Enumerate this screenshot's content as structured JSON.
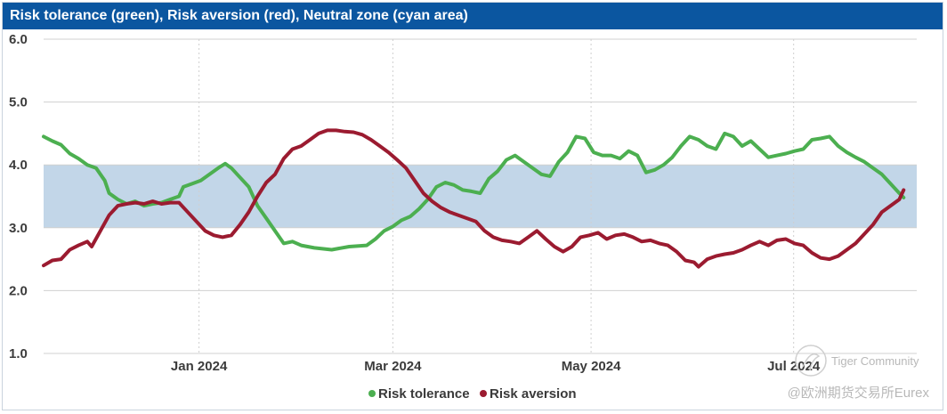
{
  "chart_data": {
    "type": "line",
    "title": "Risk tolerance (green), Risk aversion (red), Neutral zone (cyan area)",
    "ylim": [
      1.0,
      6.0
    ],
    "y_ticks": [
      "1.0",
      "2.0",
      "3.0",
      "4.0",
      "5.0",
      "6.0"
    ],
    "x_tick_labels": [
      {
        "label": "Jan 2024",
        "t": 0.178
      },
      {
        "label": "Mar 2024",
        "t": 0.4
      },
      {
        "label": "May 2024",
        "t": 0.627
      },
      {
        "label": "Jul 2024",
        "t": 0.859
      }
    ],
    "neutral_zone": {
      "low": 3.0,
      "high": 4.0,
      "color": "#c2d6e8"
    },
    "series": [
      {
        "name": "Risk tolerance",
        "color": "#4caf50",
        "points": [
          [
            0.0,
            4.45
          ],
          [
            0.01,
            4.38
          ],
          [
            0.02,
            4.32
          ],
          [
            0.03,
            4.18
          ],
          [
            0.04,
            4.1
          ],
          [
            0.05,
            4.0
          ],
          [
            0.06,
            3.95
          ],
          [
            0.07,
            3.75
          ],
          [
            0.075,
            3.55
          ],
          [
            0.085,
            3.45
          ],
          [
            0.095,
            3.38
          ],
          [
            0.105,
            3.42
          ],
          [
            0.115,
            3.35
          ],
          [
            0.125,
            3.38
          ],
          [
            0.135,
            3.4
          ],
          [
            0.145,
            3.45
          ],
          [
            0.155,
            3.5
          ],
          [
            0.16,
            3.65
          ],
          [
            0.17,
            3.7
          ],
          [
            0.18,
            3.75
          ],
          [
            0.19,
            3.85
          ],
          [
            0.2,
            3.95
          ],
          [
            0.208,
            4.02
          ],
          [
            0.215,
            3.95
          ],
          [
            0.225,
            3.8
          ],
          [
            0.235,
            3.65
          ],
          [
            0.245,
            3.35
          ],
          [
            0.255,
            3.15
          ],
          [
            0.265,
            2.95
          ],
          [
            0.275,
            2.75
          ],
          [
            0.285,
            2.78
          ],
          [
            0.295,
            2.72
          ],
          [
            0.31,
            2.68
          ],
          [
            0.33,
            2.65
          ],
          [
            0.35,
            2.7
          ],
          [
            0.37,
            2.72
          ],
          [
            0.38,
            2.82
          ],
          [
            0.39,
            2.95
          ],
          [
            0.4,
            3.02
          ],
          [
            0.41,
            3.12
          ],
          [
            0.42,
            3.18
          ],
          [
            0.43,
            3.3
          ],
          [
            0.44,
            3.45
          ],
          [
            0.45,
            3.65
          ],
          [
            0.46,
            3.72
          ],
          [
            0.47,
            3.68
          ],
          [
            0.48,
            3.6
          ],
          [
            0.49,
            3.58
          ],
          [
            0.5,
            3.55
          ],
          [
            0.51,
            3.78
          ],
          [
            0.52,
            3.9
          ],
          [
            0.53,
            4.08
          ],
          [
            0.54,
            4.15
          ],
          [
            0.55,
            4.05
          ],
          [
            0.56,
            3.95
          ],
          [
            0.57,
            3.85
          ],
          [
            0.58,
            3.82
          ],
          [
            0.59,
            4.05
          ],
          [
            0.6,
            4.2
          ],
          [
            0.61,
            4.45
          ],
          [
            0.62,
            4.42
          ],
          [
            0.63,
            4.2
          ],
          [
            0.64,
            4.15
          ],
          [
            0.65,
            4.15
          ],
          [
            0.66,
            4.1
          ],
          [
            0.67,
            4.22
          ],
          [
            0.68,
            4.15
          ],
          [
            0.69,
            3.88
          ],
          [
            0.7,
            3.92
          ],
          [
            0.71,
            4.0
          ],
          [
            0.72,
            4.12
          ],
          [
            0.73,
            4.3
          ],
          [
            0.74,
            4.45
          ],
          [
            0.75,
            4.4
          ],
          [
            0.76,
            4.3
          ],
          [
            0.77,
            4.25
          ],
          [
            0.78,
            4.5
          ],
          [
            0.79,
            4.45
          ],
          [
            0.8,
            4.3
          ],
          [
            0.81,
            4.38
          ],
          [
            0.82,
            4.25
          ],
          [
            0.83,
            4.12
          ],
          [
            0.84,
            4.15
          ],
          [
            0.85,
            4.18
          ],
          [
            0.86,
            4.22
          ],
          [
            0.87,
            4.25
          ],
          [
            0.88,
            4.4
          ],
          [
            0.89,
            4.42
          ],
          [
            0.9,
            4.45
          ],
          [
            0.91,
            4.3
          ],
          [
            0.92,
            4.2
          ],
          [
            0.93,
            4.12
          ],
          [
            0.94,
            4.05
          ],
          [
            0.95,
            3.95
          ],
          [
            0.96,
            3.85
          ],
          [
            0.97,
            3.7
          ],
          [
            0.98,
            3.55
          ],
          [
            0.985,
            3.48
          ]
        ]
      },
      {
        "name": "Risk aversion",
        "color": "#9b1b30",
        "points": [
          [
            0.0,
            2.4
          ],
          [
            0.01,
            2.48
          ],
          [
            0.02,
            2.5
          ],
          [
            0.03,
            2.65
          ],
          [
            0.04,
            2.72
          ],
          [
            0.05,
            2.78
          ],
          [
            0.055,
            2.7
          ],
          [
            0.065,
            2.95
          ],
          [
            0.075,
            3.2
          ],
          [
            0.085,
            3.35
          ],
          [
            0.095,
            3.38
          ],
          [
            0.105,
            3.4
          ],
          [
            0.115,
            3.38
          ],
          [
            0.125,
            3.42
          ],
          [
            0.135,
            3.38
          ],
          [
            0.145,
            3.4
          ],
          [
            0.155,
            3.4
          ],
          [
            0.165,
            3.25
          ],
          [
            0.175,
            3.1
          ],
          [
            0.185,
            2.95
          ],
          [
            0.195,
            2.88
          ],
          [
            0.205,
            2.85
          ],
          [
            0.215,
            2.88
          ],
          [
            0.225,
            3.05
          ],
          [
            0.235,
            3.25
          ],
          [
            0.245,
            3.5
          ],
          [
            0.255,
            3.72
          ],
          [
            0.265,
            3.85
          ],
          [
            0.275,
            4.1
          ],
          [
            0.285,
            4.25
          ],
          [
            0.295,
            4.3
          ],
          [
            0.305,
            4.4
          ],
          [
            0.315,
            4.5
          ],
          [
            0.325,
            4.55
          ],
          [
            0.335,
            4.55
          ],
          [
            0.345,
            4.53
          ],
          [
            0.355,
            4.52
          ],
          [
            0.365,
            4.48
          ],
          [
            0.375,
            4.4
          ],
          [
            0.385,
            4.3
          ],
          [
            0.395,
            4.2
          ],
          [
            0.405,
            4.08
          ],
          [
            0.415,
            3.95
          ],
          [
            0.425,
            3.75
          ],
          [
            0.435,
            3.55
          ],
          [
            0.445,
            3.42
          ],
          [
            0.455,
            3.32
          ],
          [
            0.465,
            3.25
          ],
          [
            0.475,
            3.2
          ],
          [
            0.485,
            3.15
          ],
          [
            0.495,
            3.1
          ],
          [
            0.505,
            2.95
          ],
          [
            0.515,
            2.85
          ],
          [
            0.525,
            2.8
          ],
          [
            0.535,
            2.78
          ],
          [
            0.545,
            2.75
          ],
          [
            0.555,
            2.85
          ],
          [
            0.565,
            2.95
          ],
          [
            0.575,
            2.82
          ],
          [
            0.585,
            2.7
          ],
          [
            0.595,
            2.62
          ],
          [
            0.605,
            2.7
          ],
          [
            0.615,
            2.85
          ],
          [
            0.625,
            2.88
          ],
          [
            0.635,
            2.92
          ],
          [
            0.645,
            2.82
          ],
          [
            0.655,
            2.88
          ],
          [
            0.665,
            2.9
          ],
          [
            0.675,
            2.85
          ],
          [
            0.685,
            2.78
          ],
          [
            0.695,
            2.8
          ],
          [
            0.705,
            2.75
          ],
          [
            0.715,
            2.72
          ],
          [
            0.725,
            2.62
          ],
          [
            0.735,
            2.48
          ],
          [
            0.745,
            2.45
          ],
          [
            0.75,
            2.38
          ],
          [
            0.76,
            2.5
          ],
          [
            0.77,
            2.55
          ],
          [
            0.78,
            2.58
          ],
          [
            0.79,
            2.6
          ],
          [
            0.8,
            2.65
          ],
          [
            0.81,
            2.72
          ],
          [
            0.82,
            2.78
          ],
          [
            0.83,
            2.72
          ],
          [
            0.84,
            2.8
          ],
          [
            0.85,
            2.82
          ],
          [
            0.86,
            2.75
          ],
          [
            0.87,
            2.72
          ],
          [
            0.88,
            2.6
          ],
          [
            0.89,
            2.52
          ],
          [
            0.9,
            2.5
          ],
          [
            0.91,
            2.55
          ],
          [
            0.92,
            2.65
          ],
          [
            0.93,
            2.75
          ],
          [
            0.94,
            2.9
          ],
          [
            0.95,
            3.05
          ],
          [
            0.96,
            3.25
          ],
          [
            0.97,
            3.35
          ],
          [
            0.98,
            3.45
          ],
          [
            0.985,
            3.6
          ]
        ]
      }
    ],
    "legend": {
      "position": "bottom-center",
      "items": [
        "Risk tolerance",
        "Risk aversion"
      ]
    }
  },
  "watermark": {
    "line1": "Tiger Community",
    "line2": "@欧洲期货交易所Eurex"
  }
}
